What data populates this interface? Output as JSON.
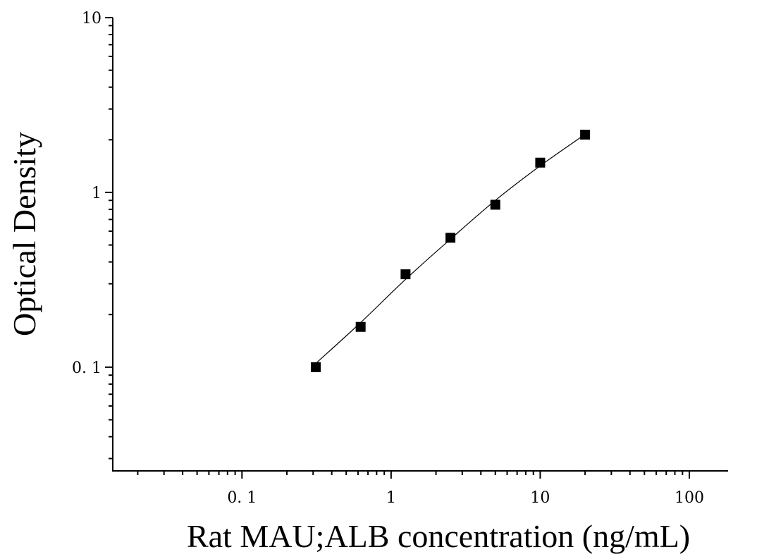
{
  "chart_data": {
    "type": "scatter",
    "xlabel": "Rat MAU;ALB concentration (ng/mL)",
    "ylabel": "Optical Density",
    "x_scale": "log",
    "y_scale": "log",
    "xlim": [
      0.0136,
      182
    ],
    "ylim": [
      0.0255,
      10
    ],
    "x_ticks": [
      {
        "value": 0.1,
        "label": "0. 1"
      },
      {
        "value": 1,
        "label": "1"
      },
      {
        "value": 10,
        "label": "10"
      },
      {
        "value": 100,
        "label": "100"
      }
    ],
    "y_ticks": [
      {
        "value": 0.1,
        "label": "0. 1"
      },
      {
        "value": 1,
        "label": "1"
      },
      {
        "value": 10,
        "label": "10"
      }
    ],
    "grid": false,
    "legend": "none",
    "series": [
      {
        "marker": "square",
        "color": "#000000",
        "points": [
          {
            "x": 0.3125,
            "y": 0.1
          },
          {
            "x": 0.625,
            "y": 0.17
          },
          {
            "x": 1.25,
            "y": 0.34
          },
          {
            "x": 2.5,
            "y": 0.55
          },
          {
            "x": 5,
            "y": 0.85
          },
          {
            "x": 10,
            "y": 1.48
          },
          {
            "x": 20,
            "y": 2.14
          }
        ]
      }
    ],
    "fit_curve": {
      "color": "#000000",
      "points": [
        {
          "x": 0.3125,
          "y": 0.105
        },
        {
          "x": 0.625,
          "y": 0.18
        },
        {
          "x": 1.25,
          "y": 0.318
        },
        {
          "x": 2.5,
          "y": 0.54
        },
        {
          "x": 5,
          "y": 0.9
        },
        {
          "x": 10,
          "y": 1.42
        },
        {
          "x": 20,
          "y": 2.15
        }
      ]
    }
  }
}
